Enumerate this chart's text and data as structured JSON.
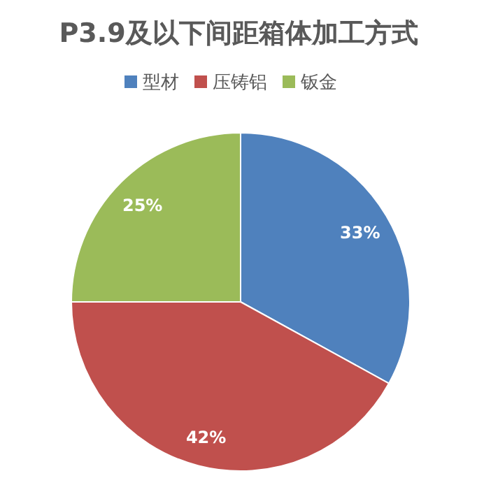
{
  "chart_data": {
    "type": "pie",
    "title": "P3.9及以下间距箱体加工方式",
    "categories": [
      "型材",
      "压铸铝",
      "钣金"
    ],
    "values": [
      33,
      42,
      25
    ],
    "colors": [
      "#4f81bd",
      "#c0504d",
      "#9bbb59"
    ],
    "value_labels": [
      "33%",
      "42%",
      "25%"
    ],
    "legend": "top"
  }
}
